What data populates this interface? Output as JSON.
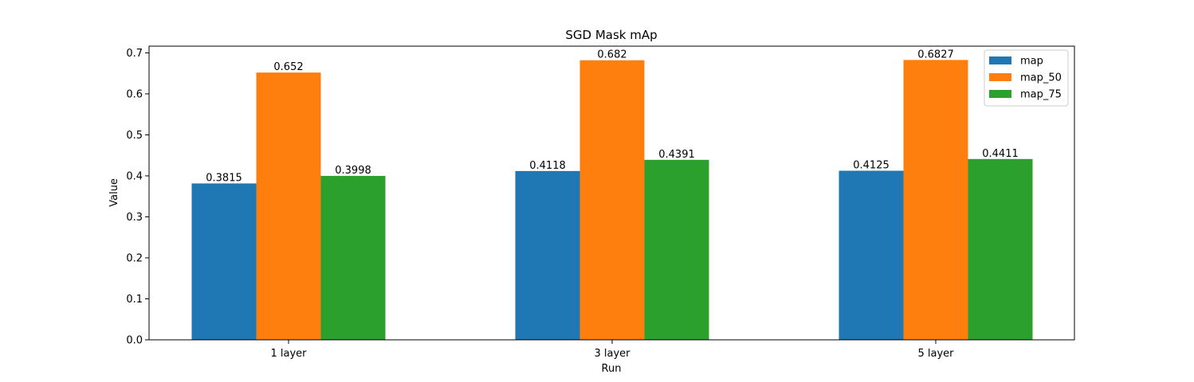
{
  "chart_data": {
    "type": "bar",
    "title": "SGD Mask mAp",
    "xlabel": "Run",
    "ylabel": "Value",
    "categories": [
      "1 layer",
      "3 layer",
      "5 layer"
    ],
    "series": [
      {
        "name": "map",
        "values": [
          0.3815,
          0.4118,
          0.4125
        ],
        "labels": [
          "0.3815",
          "0.4118",
          "0.4125"
        ],
        "color": "#1f77b4"
      },
      {
        "name": "map_50",
        "values": [
          0.652,
          0.682,
          0.6827
        ],
        "labels": [
          "0.652",
          "0.682",
          "0.6827"
        ],
        "color": "#ff7f0e"
      },
      {
        "name": "map_75",
        "values": [
          0.3998,
          0.4391,
          0.4411
        ],
        "labels": [
          "0.3998",
          "0.4391",
          "0.4411"
        ],
        "color": "#2ca02c"
      }
    ],
    "ylim": [
      0,
      0.7164
    ],
    "yticks": [
      "0.0",
      "0.1",
      "0.2",
      "0.3",
      "0.4",
      "0.5",
      "0.6",
      "0.7"
    ],
    "grid": false,
    "legend_position": "top-right"
  }
}
